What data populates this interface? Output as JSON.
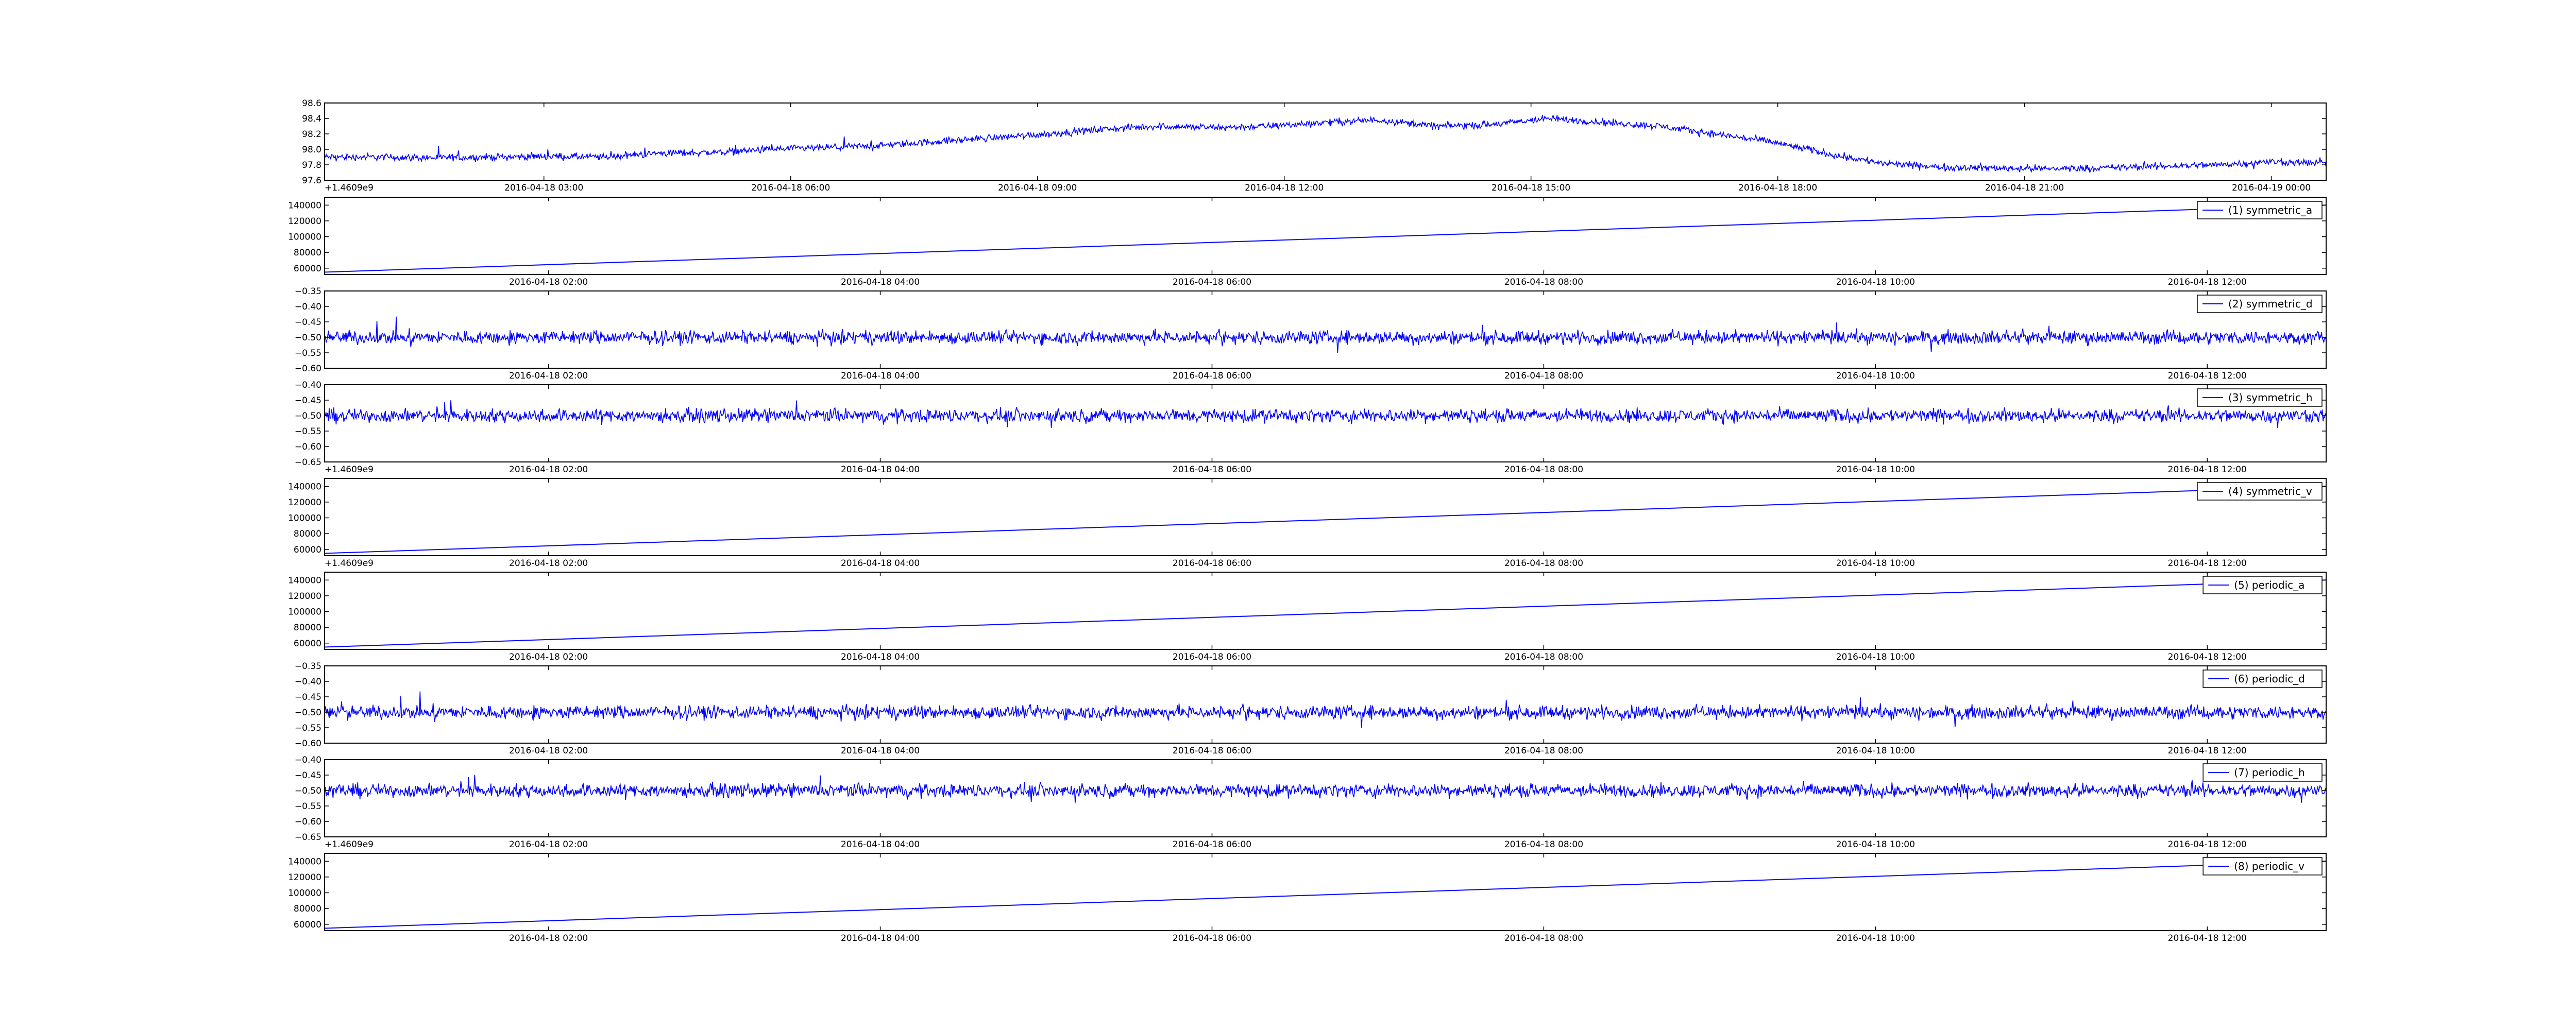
{
  "colors": {
    "background": "#ffffff",
    "line": "#0000ff",
    "axis": "#000000",
    "legend_border": "#000000"
  },
  "chart_data": [
    {
      "id": "main",
      "type": "line",
      "x_tick_labels": [
        "2016-04-18 03:00",
        "2016-04-18 06:00",
        "2016-04-18 09:00",
        "2016-04-18 12:00",
        "2016-04-18 15:00",
        "2016-04-18 18:00",
        "2016-04-18 21:00",
        "2016-04-19 00:00"
      ],
      "xlim": [
        "2016-04-18 00:20",
        "2016-04-19 00:40"
      ],
      "y_ticks": [
        "97.6",
        "97.8",
        "98.0",
        "98.2",
        "98.4",
        "98.6"
      ],
      "ylim": [
        97.6,
        98.6
      ],
      "offset_label": "+1.4609e9",
      "noise": "dense",
      "series": [
        {
          "values": [
            97.9,
            97.9,
            97.89,
            97.9,
            97.91,
            97.9,
            97.95,
            97.96,
            98.0,
            98.02,
            98.05,
            98.1,
            98.15,
            98.2,
            98.26,
            98.3,
            98.28,
            98.3,
            98.35,
            98.38,
            98.3,
            98.32,
            98.4,
            98.35,
            98.3,
            98.2,
            98.1,
            97.95,
            97.82,
            97.77,
            97.76,
            97.75,
            97.76,
            97.78,
            97.8,
            97.84,
            97.82
          ]
        }
      ]
    },
    {
      "id": "symmetric_a",
      "type": "line",
      "x_tick_labels": [
        "2016-04-18 02:00",
        "2016-04-18 04:00",
        "2016-04-18 06:00",
        "2016-04-18 08:00",
        "2016-04-18 10:00",
        "2016-04-18 12:00"
      ],
      "xlim": [
        "2016-04-18 00:39",
        "2016-04-18 12:43"
      ],
      "y_ticks": [
        "60000",
        "80000",
        "100000",
        "120000",
        "140000"
      ],
      "ylim": [
        52000,
        150000
      ],
      "offset_label": "",
      "noise": "none",
      "series": [
        {
          "name": "(1) symmetric_a",
          "values": [
            55000,
            140000
          ]
        }
      ],
      "legend": {
        "label": "(1) symmetric_a",
        "loc": "upper right"
      }
    },
    {
      "id": "symmetric_d",
      "type": "line",
      "x_tick_labels": [
        "2016-04-18 02:00",
        "2016-04-18 04:00",
        "2016-04-18 06:00",
        "2016-04-18 08:00",
        "2016-04-18 10:00",
        "2016-04-18 12:00"
      ],
      "xlim": [
        "2016-04-18 00:39",
        "2016-04-18 12:43"
      ],
      "y_ticks": [
        "−0.35",
        "−0.40",
        "−0.45",
        "−0.50",
        "−0.55",
        "−0.60"
      ],
      "ylim": [
        -0.6,
        -0.35
      ],
      "offset_label": "",
      "noise": "dense",
      "series": [
        {
          "name": "(2) symmetric_d",
          "values": [
            -0.5,
            -0.5
          ]
        }
      ],
      "legend": {
        "label": "(2) symmetric_d",
        "loc": "upper right"
      }
    },
    {
      "id": "symmetric_h",
      "type": "line",
      "x_tick_labels": [
        "2016-04-18 02:00",
        "2016-04-18 04:00",
        "2016-04-18 06:00",
        "2016-04-18 08:00",
        "2016-04-18 10:00",
        "2016-04-18 12:00"
      ],
      "xlim": [
        "2016-04-18 00:39",
        "2016-04-18 12:43"
      ],
      "y_ticks": [
        "−0.40",
        "−0.45",
        "−0.50",
        "−0.55",
        "−0.60",
        "−0.65"
      ],
      "ylim": [
        -0.65,
        -0.4
      ],
      "offset_label": "+1.4609e9",
      "noise": "dense",
      "series": [
        {
          "name": "(3) symmetric_h",
          "values": [
            -0.5,
            -0.5
          ]
        }
      ],
      "legend": {
        "label": "(3) symmetric_h",
        "loc": "upper right"
      }
    },
    {
      "id": "symmetric_v",
      "type": "line",
      "x_tick_labels": [
        "2016-04-18 02:00",
        "2016-04-18 04:00",
        "2016-04-18 06:00",
        "2016-04-18 08:00",
        "2016-04-18 10:00",
        "2016-04-18 12:00"
      ],
      "xlim": [
        "2016-04-18 00:39",
        "2016-04-18 12:43"
      ],
      "y_ticks": [
        "60000",
        "80000",
        "100000",
        "120000",
        "140000"
      ],
      "ylim": [
        52000,
        150000
      ],
      "offset_label": "+1.4609e9",
      "noise": "none",
      "series": [
        {
          "name": "(4) symmetric_v",
          "values": [
            55000,
            140000
          ]
        }
      ],
      "legend": {
        "label": "(4) symmetric_v",
        "loc": "upper right"
      }
    },
    {
      "id": "periodic_a",
      "type": "line",
      "x_tick_labels": [
        "2016-04-18 02:00",
        "2016-04-18 04:00",
        "2016-04-18 06:00",
        "2016-04-18 08:00",
        "2016-04-18 10:00",
        "2016-04-18 12:00"
      ],
      "xlim": [
        "2016-04-18 00:39",
        "2016-04-18 12:43"
      ],
      "y_ticks": [
        "60000",
        "80000",
        "100000",
        "120000",
        "140000"
      ],
      "ylim": [
        52000,
        150000
      ],
      "offset_label": "",
      "noise": "none",
      "series": [
        {
          "name": "(5) periodic_a",
          "values": [
            55000,
            140000
          ]
        }
      ],
      "legend": {
        "label": "(5) periodic_a",
        "loc": "upper right"
      }
    },
    {
      "id": "periodic_d",
      "type": "line",
      "x_tick_labels": [
        "2016-04-18 02:00",
        "2016-04-18 04:00",
        "2016-04-18 06:00",
        "2016-04-18 08:00",
        "2016-04-18 10:00",
        "2016-04-18 12:00"
      ],
      "xlim": [
        "2016-04-18 00:39",
        "2016-04-18 12:43"
      ],
      "y_ticks": [
        "−0.35",
        "−0.40",
        "−0.45",
        "−0.50",
        "−0.55",
        "−0.60"
      ],
      "ylim": [
        -0.6,
        -0.35
      ],
      "offset_label": "",
      "noise": "dense",
      "series": [
        {
          "name": "(6) periodic_d",
          "values": [
            -0.5,
            -0.5
          ]
        }
      ],
      "legend": {
        "label": "(6) periodic_d",
        "loc": "upper right"
      }
    },
    {
      "id": "periodic_h",
      "type": "line",
      "x_tick_labels": [
        "2016-04-18 02:00",
        "2016-04-18 04:00",
        "2016-04-18 06:00",
        "2016-04-18 08:00",
        "2016-04-18 10:00",
        "2016-04-18 12:00"
      ],
      "xlim": [
        "2016-04-18 00:39",
        "2016-04-18 12:43"
      ],
      "y_ticks": [
        "−0.40",
        "−0.45",
        "−0.50",
        "−0.55",
        "−0.60",
        "−0.65"
      ],
      "ylim": [
        -0.65,
        -0.4
      ],
      "offset_label": "+1.4609e9",
      "noise": "dense",
      "series": [
        {
          "name": "(7) periodic_h",
          "values": [
            -0.5,
            -0.5
          ]
        }
      ],
      "legend": {
        "label": "(7) periodic_h",
        "loc": "upper right"
      }
    },
    {
      "id": "periodic_v",
      "type": "line",
      "x_tick_labels": [
        "2016-04-18 02:00",
        "2016-04-18 04:00",
        "2016-04-18 06:00",
        "2016-04-18 08:00",
        "2016-04-18 10:00",
        "2016-04-18 12:00"
      ],
      "xlim": [
        "2016-04-18 00:39",
        "2016-04-18 12:43"
      ],
      "y_ticks": [
        "60000",
        "80000",
        "100000",
        "120000",
        "140000"
      ],
      "ylim": [
        52000,
        150000
      ],
      "offset_label": "",
      "noise": "none",
      "series": [
        {
          "name": "(8) periodic_v",
          "values": [
            55000,
            140000
          ]
        }
      ],
      "legend": {
        "label": "(8) periodic_v",
        "loc": "upper right"
      }
    }
  ]
}
